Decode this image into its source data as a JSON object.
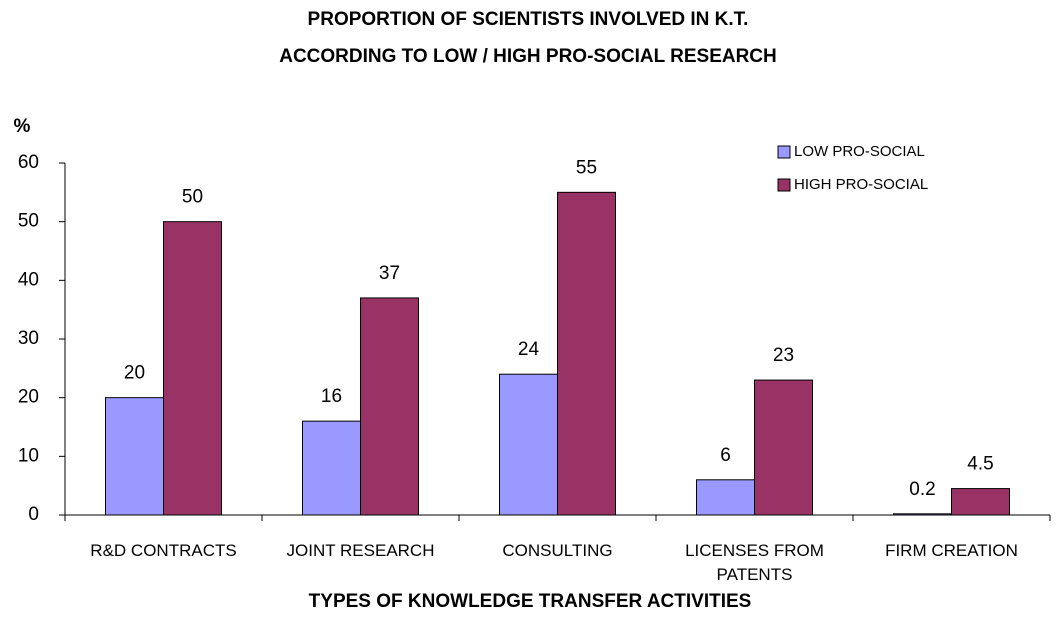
{
  "chart_data": {
    "type": "bar",
    "title": [
      "PROPORTION OF SCIENTISTS INVOLVED IN K.T.",
      "ACCORDING TO LOW / HIGH PRO-SOCIAL RESEARCH"
    ],
    "y_label": "%",
    "x_label": "TYPES OF KNOWLEDGE TRANSFER ACTIVITIES",
    "categories": [
      "R&D CONTRACTS",
      "JOINT RESEARCH",
      "CONSULTING",
      "LICENSES FROM PATENTS",
      "FIRM CREATION"
    ],
    "series": [
      {
        "name": "LOW PRO-SOCIAL",
        "color": "#9999ff",
        "values": [
          20,
          16,
          24,
          6,
          0.2
        ]
      },
      {
        "name": "HIGH PRO-SOCIAL",
        "color": "#993366",
        "values": [
          50,
          37,
          55,
          23,
          4.5
        ]
      }
    ],
    "ylim": [
      0,
      60
    ],
    "yticks": [
      0,
      10,
      20,
      30,
      40,
      50,
      60
    ],
    "grid": false,
    "legend": "top-right"
  }
}
